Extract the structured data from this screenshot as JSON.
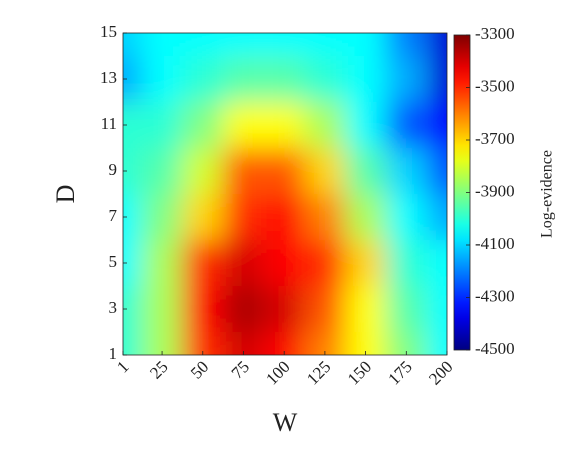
{
  "chart_data": {
    "type": "heatmap",
    "x_label": "W",
    "y_label": "D",
    "colorbar_label": "Log-evidence",
    "x": [
      1,
      25,
      50,
      75,
      100,
      125,
      150,
      175,
      200
    ],
    "y": [
      1,
      3,
      5,
      7,
      9,
      11,
      13,
      15
    ],
    "z": [
      [
        -4000,
        -3850,
        -3500,
        -3400,
        -3450,
        -3600,
        -3750,
        -3900,
        -4050
      ],
      [
        -4000,
        -3850,
        -3450,
        -3350,
        -3400,
        -3550,
        -3750,
        -3950,
        -4050
      ],
      [
        -4050,
        -3850,
        -3500,
        -3400,
        -3450,
        -3500,
        -3700,
        -4000,
        -4050
      ],
      [
        -4050,
        -3900,
        -3700,
        -3500,
        -3450,
        -3600,
        -3850,
        -4050,
        -4150
      ],
      [
        -4000,
        -3950,
        -3800,
        -3550,
        -3550,
        -3700,
        -3950,
        -4100,
        -4250
      ],
      [
        -4000,
        -4000,
        -3900,
        -3750,
        -3750,
        -3850,
        -4050,
        -4250,
        -4350
      ],
      [
        -4150,
        -4050,
        -4000,
        -3950,
        -3950,
        -4000,
        -4050,
        -4150,
        -4400
      ],
      [
        -4100,
        -4050,
        -4050,
        -4050,
        -4050,
        -4050,
        -4050,
        -4200,
        -4400
      ]
    ],
    "xlim": [
      1,
      200
    ],
    "xticks": [
      1,
      25,
      50,
      75,
      100,
      125,
      150,
      175,
      200
    ],
    "ylim": [
      1,
      15
    ],
    "yticks": [
      1,
      3,
      5,
      7,
      9,
      11,
      13,
      15
    ],
    "clim": [
      -4500,
      -3300
    ],
    "cticks": [
      -3300,
      -3500,
      -3700,
      -3900,
      -4100,
      -4300,
      -4500
    ],
    "colormap": "jet"
  }
}
